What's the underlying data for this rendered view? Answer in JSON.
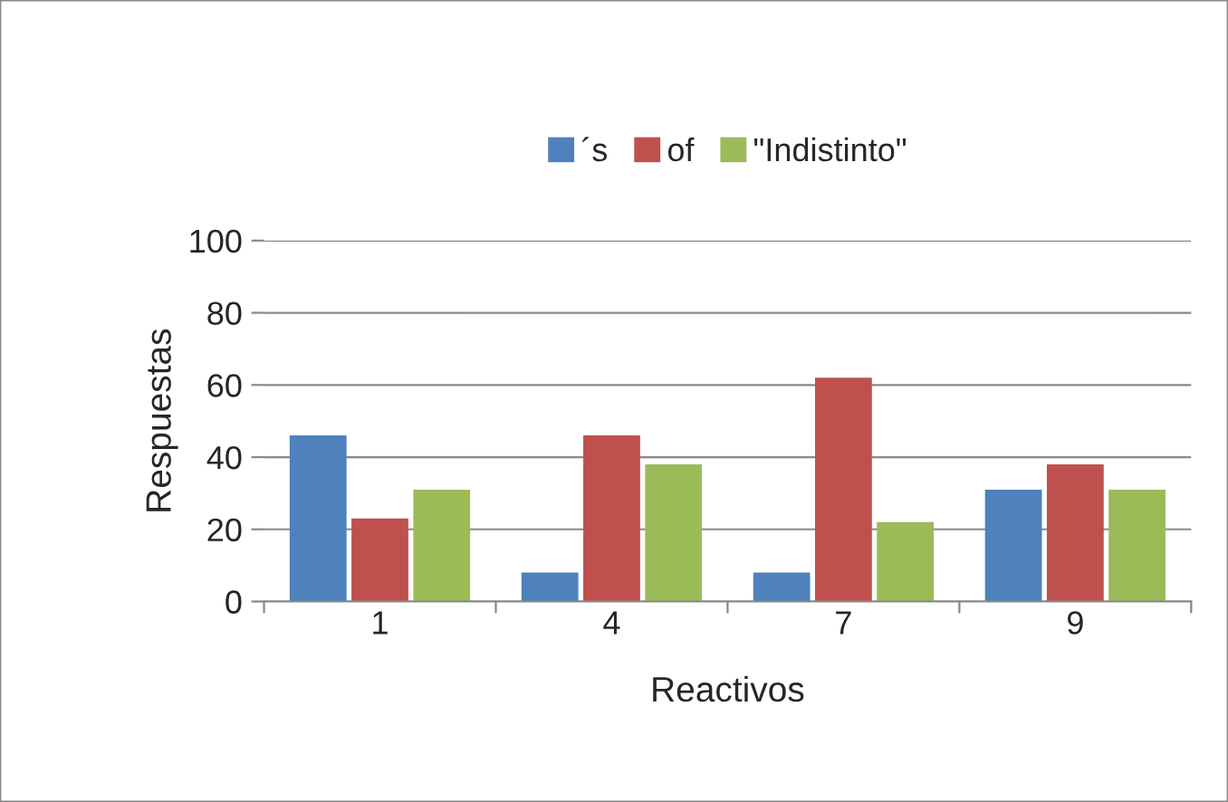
{
  "chart_data": {
    "type": "bar",
    "xlabel": "Reactivos",
    "ylabel": "Respuestas",
    "categories": [
      "1",
      "4",
      "7",
      "9"
    ],
    "series": [
      {
        "name": "´s",
        "color": "#4f81bd",
        "values": [
          46,
          8,
          8,
          31
        ]
      },
      {
        "name": "of",
        "color": "#c0504d",
        "values": [
          23,
          46,
          62,
          38
        ]
      },
      {
        "name": "\"Indistinto\"",
        "color": "#9bbb59",
        "values": [
          31,
          38,
          22,
          31
        ]
      }
    ],
    "ylim": [
      0,
      100
    ],
    "yticks": [
      0,
      20,
      40,
      60,
      80,
      100
    ],
    "grid": "y",
    "legend": "top"
  }
}
